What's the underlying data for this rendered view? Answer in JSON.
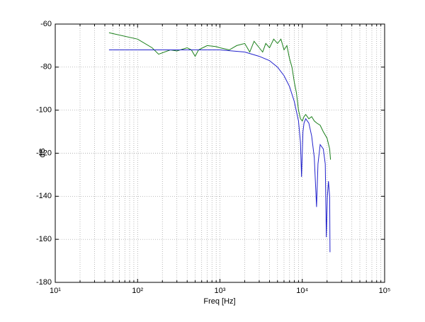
{
  "chart_data": {
    "type": "line",
    "xlabel": "Freq [Hz]",
    "ylabel": "dB",
    "xscale": "log",
    "grid": true,
    "xlim": [
      10,
      100000
    ],
    "ylim": [
      -180,
      -60
    ],
    "xticks": [
      {
        "value": 10,
        "label": "10¹"
      },
      {
        "value": 100,
        "label": "10²"
      },
      {
        "value": 1000,
        "label": "10³"
      },
      {
        "value": 10000,
        "label": "10⁴"
      },
      {
        "value": 100000,
        "label": "10⁵"
      }
    ],
    "xminorticks": [
      20,
      30,
      40,
      50,
      60,
      70,
      80,
      90,
      200,
      300,
      400,
      500,
      600,
      700,
      800,
      900,
      2000,
      3000,
      4000,
      5000,
      6000,
      7000,
      8000,
      9000,
      20000,
      30000,
      40000,
      50000,
      60000,
      70000,
      80000,
      90000
    ],
    "yticks": [
      -180,
      -160,
      -140,
      -120,
      -100,
      -80,
      -60
    ],
    "series": [
      {
        "color": "#1a7f1a",
        "x": [
          45,
          100,
          150,
          180,
          250,
          300,
          400,
          450,
          500,
          550,
          700,
          900,
          1000,
          1300,
          1600,
          2000,
          2300,
          2600,
          3000,
          3300,
          3600,
          4000,
          4500,
          5000,
          5500,
          6000,
          6500,
          7000,
          7500,
          8000,
          8500,
          9000,
          9500,
          10000,
          10500,
          11000,
          12000,
          13000,
          14000,
          15000,
          16500,
          18000,
          20000,
          21500,
          22000
        ],
        "values": [
          -64,
          -67,
          -71,
          -74,
          -72,
          -72.5,
          -71,
          -72,
          -75,
          -72,
          -70,
          -70.5,
          -71,
          -72,
          -70,
          -69,
          -73,
          -68,
          -71,
          -73,
          -69,
          -71,
          -67,
          -69,
          -67,
          -72,
          -70,
          -76,
          -80,
          -87,
          -92,
          -100,
          -104,
          -105,
          -103,
          -102,
          -104,
          -103,
          -105,
          -106,
          -107,
          -110,
          -113,
          -118,
          -123
        ]
      },
      {
        "color": "#2222cc",
        "x": [
          45,
          200,
          500,
          1000,
          2000,
          3000,
          4000,
          5000,
          6000,
          7000,
          8000,
          9000,
          9500,
          9800,
          10200,
          10500,
          11000,
          12000,
          13000,
          14000,
          14900,
          15500,
          16500,
          18000,
          19000,
          19600,
          20200,
          20800,
          21500,
          21700
        ],
        "values": [
          -72,
          -72,
          -72,
          -72,
          -73,
          -75,
          -77,
          -80,
          -84,
          -89,
          -96,
          -105,
          -115,
          -131,
          -110,
          -106,
          -104,
          -106,
          -112,
          -122,
          -145,
          -125,
          -116,
          -118,
          -125,
          -159,
          -140,
          -133,
          -140,
          -166
        ]
      }
    ]
  }
}
